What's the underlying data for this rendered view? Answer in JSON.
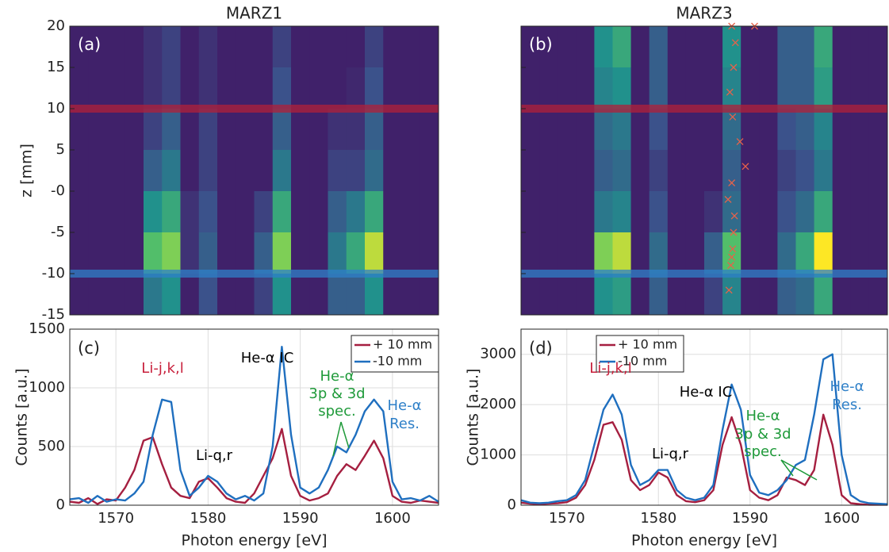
{
  "chart_data": [
    {
      "type": "heatmap",
      "title": "MARZ1",
      "panel_label": "(a)",
      "ylabel": "z [mm]",
      "x": [
        1566,
        1568,
        1570,
        1572,
        1574,
        1576,
        1578,
        1580,
        1582,
        1584,
        1586,
        1588,
        1590,
        1592,
        1594,
        1596,
        1598,
        1600,
        1602,
        1604
      ],
      "y": [
        17.5,
        12.5,
        7.5,
        2.5,
        -2.5,
        -7.5,
        -12.5
      ],
      "values": [
        [
          0.1,
          0.1,
          0.1,
          0.1,
          0.15,
          0.2,
          0.1,
          0.15,
          0.1,
          0.1,
          0.1,
          0.2,
          0.1,
          0.1,
          0.1,
          0.1,
          0.2,
          0.1,
          0.1,
          0.1
        ],
        [
          0.1,
          0.1,
          0.1,
          0.1,
          0.15,
          0.2,
          0.1,
          0.15,
          0.1,
          0.1,
          0.1,
          0.25,
          0.1,
          0.1,
          0.1,
          0.12,
          0.25,
          0.1,
          0.1,
          0.1
        ],
        [
          0.1,
          0.1,
          0.1,
          0.1,
          0.2,
          0.3,
          0.1,
          0.2,
          0.1,
          0.1,
          0.1,
          0.3,
          0.1,
          0.1,
          0.15,
          0.15,
          0.3,
          0.1,
          0.1,
          0.1
        ],
        [
          0.1,
          0.1,
          0.1,
          0.1,
          0.3,
          0.4,
          0.1,
          0.2,
          0.1,
          0.1,
          0.1,
          0.4,
          0.1,
          0.1,
          0.2,
          0.2,
          0.35,
          0.1,
          0.1,
          0.1
        ],
        [
          0.1,
          0.1,
          0.1,
          0.1,
          0.5,
          0.6,
          0.15,
          0.25,
          0.1,
          0.1,
          0.2,
          0.6,
          0.1,
          0.1,
          0.3,
          0.4,
          0.6,
          0.1,
          0.1,
          0.1
        ],
        [
          0.1,
          0.1,
          0.1,
          0.1,
          0.7,
          0.8,
          0.15,
          0.3,
          0.1,
          0.1,
          0.3,
          0.8,
          0.1,
          0.1,
          0.4,
          0.6,
          0.9,
          0.1,
          0.1,
          0.1
        ],
        [
          0.1,
          0.1,
          0.1,
          0.1,
          0.4,
          0.5,
          0.1,
          0.25,
          0.1,
          0.1,
          0.2,
          0.5,
          0.1,
          0.1,
          0.3,
          0.3,
          0.5,
          0.1,
          0.1,
          0.1
        ]
      ],
      "colormap": "viridis",
      "zlim": [
        0,
        1
      ],
      "xlim": [
        1565,
        1605
      ],
      "ylim": [
        -15,
        20
      ],
      "yticks": [
        -15,
        -10,
        -5,
        {
          "value": 0,
          "label": "-0"
        },
        5,
        10,
        15,
        20
      ],
      "ytick_labels": true,
      "bands": [
        {
          "value": 10,
          "color": "#b0203a"
        },
        {
          "value": -10,
          "color": "#2f80c8"
        }
      ]
    },
    {
      "type": "heatmap",
      "title": "MARZ3",
      "panel_label": "(b)",
      "x": [
        1566,
        1568,
        1570,
        1572,
        1574,
        1576,
        1578,
        1580,
        1582,
        1584,
        1586,
        1588,
        1590,
        1592,
        1594,
        1596,
        1598,
        1600,
        1602,
        1604
      ],
      "y": [
        17.5,
        12.5,
        7.5,
        2.5,
        -2.5,
        -7.5,
        -12.5
      ],
      "values": [
        [
          0.1,
          0.1,
          0.1,
          0.1,
          0.5,
          0.6,
          0.1,
          0.3,
          0.1,
          0.1,
          0.1,
          0.5,
          0.1,
          0.1,
          0.3,
          0.3,
          0.6,
          0.1,
          0.1,
          0.1
        ],
        [
          0.1,
          0.1,
          0.1,
          0.1,
          0.45,
          0.5,
          0.1,
          0.3,
          0.1,
          0.1,
          0.1,
          0.45,
          0.1,
          0.1,
          0.3,
          0.3,
          0.55,
          0.1,
          0.1,
          0.1
        ],
        [
          0.1,
          0.1,
          0.1,
          0.1,
          0.35,
          0.4,
          0.1,
          0.25,
          0.1,
          0.1,
          0.1,
          0.35,
          0.1,
          0.1,
          0.25,
          0.3,
          0.45,
          0.1,
          0.1,
          0.1
        ],
        [
          0.1,
          0.1,
          0.1,
          0.1,
          0.3,
          0.35,
          0.1,
          0.2,
          0.1,
          0.1,
          0.1,
          0.3,
          0.1,
          0.1,
          0.2,
          0.25,
          0.4,
          0.1,
          0.1,
          0.1
        ],
        [
          0.1,
          0.1,
          0.1,
          0.1,
          0.4,
          0.45,
          0.1,
          0.25,
          0.1,
          0.1,
          0.15,
          0.35,
          0.1,
          0.1,
          0.25,
          0.35,
          0.6,
          0.1,
          0.1,
          0.1
        ],
        [
          0.1,
          0.1,
          0.1,
          0.1,
          0.8,
          0.9,
          0.1,
          0.35,
          0.1,
          0.1,
          0.3,
          0.7,
          0.1,
          0.1,
          0.35,
          0.6,
          1,
          0.1,
          0.1,
          0.1
        ],
        [
          0.1,
          0.1,
          0.1,
          0.1,
          0.5,
          0.55,
          0.1,
          0.3,
          0.1,
          0.1,
          0.2,
          0.45,
          0.1,
          0.1,
          0.3,
          0.35,
          0.6,
          0.1,
          0.1,
          0.1
        ]
      ],
      "colormap": "viridis",
      "zlim": [
        0,
        1
      ],
      "xlim": [
        1565,
        1605
      ],
      "ylim": [
        -15,
        20
      ],
      "yticks": [
        -15,
        -10,
        -5,
        0,
        5,
        10,
        15,
        20
      ],
      "ytick_labels": false,
      "bands": [
        {
          "value": 10,
          "color": "#b0203a"
        },
        {
          "value": -10,
          "color": "#2f80c8"
        }
      ],
      "markers": {
        "color": "#e8624a",
        "x": [
          1588,
          1590.5,
          1588.4,
          1588.2,
          1587.8,
          1588.1,
          1588.9,
          1589.5,
          1588,
          1587.6,
          1588.3,
          1588.2,
          1588.1,
          1588,
          1587.9,
          1587.7
        ],
        "y": [
          20,
          20,
          18,
          15,
          12,
          9,
          6,
          3,
          1,
          -1,
          -3,
          -5,
          -7,
          -8,
          -9,
          -12
        ]
      }
    },
    {
      "type": "line",
      "panel_label": "(c)",
      "xlabel": "Photon energy [eV]",
      "ylabel": "Counts [a.u.]",
      "x": [
        1565,
        1566,
        1567,
        1568,
        1569,
        1570,
        1571,
        1572,
        1573,
        1574,
        1575,
        1576,
        1577,
        1578,
        1579,
        1580,
        1581,
        1582,
        1583,
        1584,
        1585,
        1586,
        1587,
        1588,
        1589,
        1590,
        1591,
        1592,
        1593,
        1594,
        1595,
        1596,
        1597,
        1598,
        1599,
        1600,
        1601,
        1602,
        1603,
        1604,
        1605
      ],
      "series": [
        {
          "name": "+ 10 mm",
          "color": "#a51f40",
          "values": [
            30,
            20,
            60,
            10,
            50,
            40,
            150,
            300,
            550,
            580,
            350,
            150,
            80,
            60,
            200,
            230,
            150,
            60,
            30,
            20,
            100,
            250,
            400,
            650,
            250,
            80,
            40,
            60,
            100,
            250,
            350,
            300,
            420,
            550,
            400,
            80,
            30,
            20,
            40,
            30,
            20
          ]
        },
        {
          "name": "-10 mm",
          "color": "#1f6fbf",
          "values": [
            50,
            60,
            20,
            80,
            30,
            50,
            40,
            100,
            200,
            600,
            900,
            880,
            300,
            80,
            150,
            250,
            200,
            100,
            50,
            80,
            40,
            100,
            500,
            1350,
            600,
            150,
            100,
            150,
            300,
            500,
            450,
            600,
            800,
            900,
            800,
            200,
            50,
            60,
            40,
            80,
            30
          ]
        }
      ],
      "xlim": [
        1565,
        1605
      ],
      "ylim": [
        0,
        1500
      ],
      "xticks": [
        1570,
        1580,
        1590,
        1600
      ],
      "yticks": [
        0,
        500,
        1000,
        1500
      ],
      "grid": true,
      "legend": "upper right",
      "annotations": [
        {
          "lines": [
            "Li-j,k,l"
          ],
          "color": "#c8203c"
        },
        {
          "lines": [
            "Li-q,r"
          ],
          "color": "#000000"
        },
        {
          "lines": [
            "He-α IC"
          ],
          "color": "#000000"
        },
        {
          "lines": [
            "He-α",
            "3p & 3d",
            "spec."
          ],
          "color": "#1f9a3a"
        },
        {
          "lines": [
            "He-α",
            "Res."
          ],
          "color": "#2f80c8"
        }
      ]
    },
    {
      "type": "line",
      "panel_label": "(d)",
      "xlabel": "Photon energy [eV]",
      "ylabel": "Counts [a.u.]",
      "x": [
        1565,
        1566,
        1567,
        1568,
        1569,
        1570,
        1571,
        1572,
        1573,
        1574,
        1575,
        1576,
        1577,
        1578,
        1579,
        1580,
        1581,
        1582,
        1583,
        1584,
        1585,
        1586,
        1587,
        1588,
        1589,
        1590,
        1591,
        1592,
        1593,
        1594,
        1595,
        1596,
        1597,
        1598,
        1599,
        1600,
        1601,
        1602,
        1603,
        1604,
        1605
      ],
      "series": [
        {
          "name": "+ 10 mm",
          "color": "#a51f40",
          "values": [
            50,
            30,
            20,
            30,
            40,
            60,
            150,
            400,
            900,
            1600,
            1650,
            1300,
            500,
            300,
            400,
            650,
            550,
            200,
            80,
            60,
            100,
            300,
            1200,
            1750,
            1200,
            300,
            150,
            100,
            200,
            550,
            500,
            400,
            700,
            1800,
            1200,
            200,
            40,
            20,
            10,
            10,
            10
          ]
        },
        {
          "name": "-10 mm",
          "color": "#1f6fbf",
          "values": [
            100,
            50,
            40,
            50,
            80,
            100,
            200,
            500,
            1200,
            1900,
            2200,
            1800,
            800,
            400,
            500,
            700,
            700,
            300,
            150,
            100,
            150,
            400,
            1500,
            2400,
            1900,
            600,
            250,
            200,
            300,
            500,
            800,
            900,
            1800,
            2900,
            3000,
            1000,
            200,
            80,
            40,
            30,
            20
          ]
        }
      ],
      "xlim": [
        1565,
        1605
      ],
      "ylim": [
        0,
        3500
      ],
      "xticks": [
        1570,
        1580,
        1590,
        1600
      ],
      "yticks": [
        0,
        1000,
        2000,
        3000
      ],
      "grid": true,
      "legend": "upper left",
      "annotations": [
        {
          "lines": [
            "Li-j,k,l"
          ],
          "color": "#c8203c"
        },
        {
          "lines": [
            "Li-q,r"
          ],
          "color": "#000000"
        },
        {
          "lines": [
            "He-α IC"
          ],
          "color": "#000000"
        },
        {
          "lines": [
            "He-α",
            "3p & 3d",
            "spec."
          ],
          "color": "#1f9a3a"
        },
        {
          "lines": [
            "He-α",
            "Res."
          ],
          "color": "#2f80c8"
        }
      ]
    }
  ]
}
